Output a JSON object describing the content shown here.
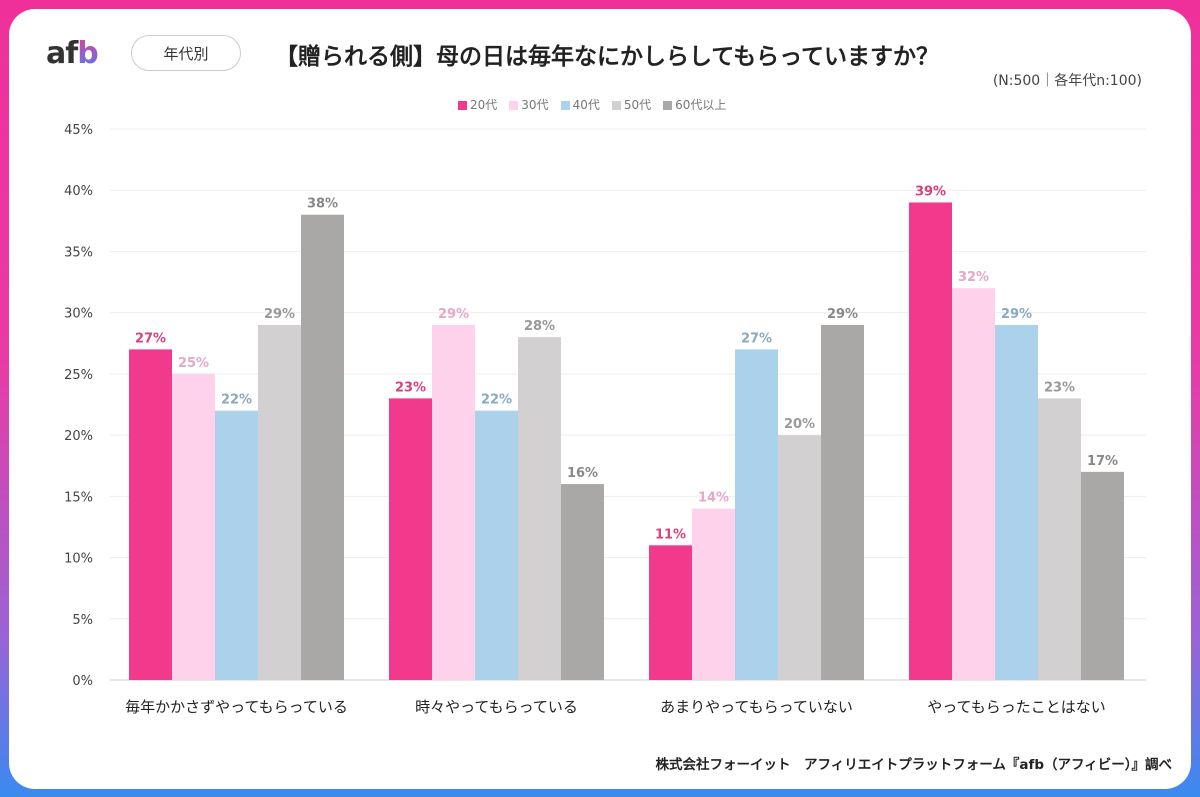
{
  "header": {
    "logo": "afb",
    "filter_pill": "年代別",
    "title": "【贈られる側】母の日は毎年なにかしらしてもらっていますか？",
    "sample_note": "(N:500｜各年代n:100)"
  },
  "footer": {
    "source": "株式会社フォーイット　アフィリエイトプラットフォーム『afb（アフィビー）』調べ"
  },
  "colors": {
    "border_top": "#f0309a",
    "border_bottom": "#3a8af0"
  },
  "chart_data": {
    "type": "bar",
    "title": "【贈られる側】母の日は毎年なにかしらしてもらっていますか？",
    "categories": [
      "毎年かかさずやってもらっている",
      "時々やってもらっている",
      "あまりやってもらっていない",
      "やってもらったことはない"
    ],
    "series": [
      {
        "name": "20代",
        "color": "#f23a8c",
        "label_color": "#d9407f",
        "values": [
          27,
          23,
          11,
          39
        ]
      },
      {
        "name": "30代",
        "color": "#fdd2ea",
        "label_color": "#e6a7c8",
        "values": [
          25,
          29,
          14,
          32
        ]
      },
      {
        "name": "40代",
        "color": "#abd2ea",
        "label_color": "#8aaac0",
        "values": [
          22,
          22,
          27,
          29
        ]
      },
      {
        "name": "50代",
        "color": "#d3d0d1",
        "label_color": "#999",
        "values": [
          29,
          28,
          20,
          23
        ]
      },
      {
        "name": "60代以上",
        "color": "#aaa7a7",
        "label_color": "#888",
        "values": [
          38,
          16,
          29,
          17
        ]
      }
    ],
    "yticks": [
      "0%",
      "5%",
      "10%",
      "15%",
      "20%",
      "25%",
      "30%",
      "35%",
      "40%",
      "45%"
    ],
    "ylim": [
      0,
      45
    ],
    "grid": true,
    "legend_position": "top"
  }
}
